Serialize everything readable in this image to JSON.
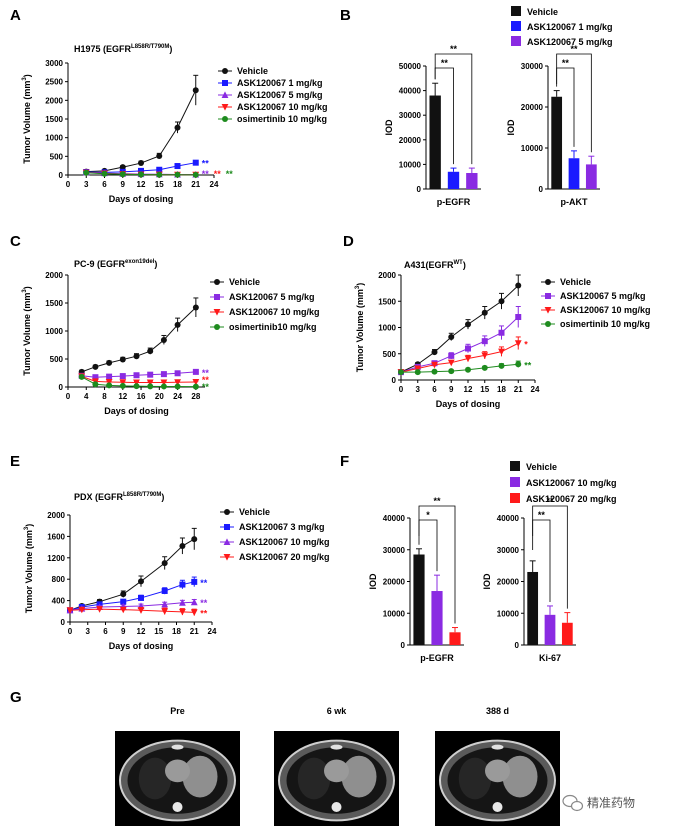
{
  "colors": {
    "vehicle": "#111111",
    "blue": "#1a1aff",
    "purple": "#8a2be2",
    "red": "#ff1a1a",
    "green": "#1e8b1e"
  },
  "footer": {
    "watermark_text": "精准药物",
    "watermark_icon": "wechat-icon"
  },
  "chart_data": [
    {
      "id": "A",
      "panel_label": "A",
      "type": "line",
      "title_main": "H1975 (EGFR",
      "title_sup": "L858R/T790M",
      "title_end": ")",
      "xlabel": "Days of dosing",
      "ylabel": "Tumor Volume (mm",
      "ylabel_sup": "3",
      "ylabel_end": ")",
      "xlim": [
        0,
        24
      ],
      "ylim": [
        0,
        3000
      ],
      "xticks": [
        0,
        3,
        6,
        9,
        12,
        15,
        18,
        21,
        24
      ],
      "yticks": [
        0,
        500,
        1000,
        1500,
        2000,
        2500,
        3000
      ],
      "x": [
        3,
        6,
        9,
        12,
        15,
        18,
        21
      ],
      "series": [
        {
          "name": "Vehicle",
          "color_key": "vehicle",
          "marker": "circle",
          "values": [
            90,
            110,
            210,
            320,
            510,
            1270,
            2270
          ],
          "err": [
            20,
            25,
            40,
            50,
            70,
            150,
            400
          ]
        },
        {
          "name": "ASK120067 1 mg/kg",
          "color_key": "blue",
          "marker": "square",
          "values": [
            80,
            70,
            85,
            110,
            140,
            240,
            330
          ],
          "err": [
            10,
            10,
            15,
            15,
            20,
            30,
            40
          ]
        },
        {
          "name": "ASK120067 5 mg/kg",
          "color_key": "purple",
          "marker": "triangle",
          "values": [
            70,
            50,
            35,
            25,
            20,
            15,
            12
          ],
          "err": [
            10,
            8,
            5,
            5,
            4,
            3,
            3
          ]
        },
        {
          "name": "ASK120067 10 mg/kg",
          "color_key": "red",
          "marker": "triangle-down",
          "values": [
            65,
            40,
            25,
            15,
            10,
            8,
            6
          ],
          "err": [
            8,
            6,
            4,
            3,
            2,
            2,
            2
          ]
        },
        {
          "name": "osimertinib 10 mg/kg",
          "color_key": "green",
          "marker": "circle",
          "values": [
            60,
            35,
            20,
            12,
            8,
            6,
            5
          ],
          "err": [
            8,
            5,
            4,
            3,
            2,
            2,
            2
          ]
        }
      ],
      "sig_marks": [
        {
          "text": "**",
          "color_key": "blue",
          "y": 330
        },
        {
          "text": "**",
          "color_key": "purple",
          "y": 0
        },
        {
          "text": "**",
          "color_key": "red",
          "y": 0
        },
        {
          "text": "**",
          "color_key": "green",
          "y": 0
        }
      ]
    },
    {
      "id": "C",
      "panel_label": "C",
      "type": "line",
      "title_main": "PC-9 (EGFR",
      "title_sup": "exon19del",
      "title_end": ")",
      "xlabel": "Days of dosing",
      "ylabel": "Tumor Volume (mm",
      "ylabel_sup": "3",
      "ylabel_end": ")",
      "xlim": [
        0,
        30
      ],
      "ylim": [
        0,
        2000
      ],
      "xticks": [
        0,
        4,
        8,
        12,
        16,
        20,
        24,
        28
      ],
      "yticks": [
        0,
        500,
        1000,
        1500,
        2000
      ],
      "x": [
        3,
        6,
        9,
        12,
        15,
        18,
        21,
        24,
        28
      ],
      "series": [
        {
          "name": "Vehicle",
          "color_key": "vehicle",
          "marker": "circle",
          "values": [
            270,
            360,
            430,
            490,
            550,
            640,
            840,
            1110,
            1420
          ],
          "err": [
            30,
            30,
            35,
            40,
            45,
            55,
            80,
            120,
            170
          ]
        },
        {
          "name": "ASK120067 5 mg/kg",
          "color_key": "purple",
          "marker": "square",
          "values": [
            200,
            175,
            185,
            195,
            210,
            220,
            230,
            245,
            270
          ],
          "err": [
            20,
            20,
            20,
            20,
            25,
            25,
            30,
            30,
            40
          ]
        },
        {
          "name": "ASK120067 10 mg/kg",
          "color_key": "red",
          "marker": "triangle-down",
          "values": [
            190,
            100,
            90,
            85,
            80,
            80,
            80,
            85,
            90
          ],
          "err": [
            20,
            15,
            15,
            15,
            15,
            15,
            15,
            15,
            15
          ]
        },
        {
          "name": "osimertinib10 mg/kg",
          "color_key": "green",
          "marker": "circle",
          "values": [
            180,
            50,
            30,
            20,
            15,
            12,
            10,
            8,
            6
          ],
          "err": [
            20,
            10,
            8,
            5,
            4,
            3,
            3,
            2,
            2
          ]
        }
      ],
      "sig_marks": [
        {
          "text": "**",
          "color_key": "purple",
          "y": 270
        },
        {
          "text": "**",
          "color_key": "red",
          "y": 140
        },
        {
          "text": "**",
          "color_key": "green",
          "y": 20
        }
      ]
    },
    {
      "id": "D",
      "panel_label": "D",
      "type": "line",
      "title_main": "A431(EGFR",
      "title_sup": "WT",
      "title_end": ")",
      "xlabel": "Days of dosing",
      "ylabel": "Tumor Volume (mm",
      "ylabel_sup": "3",
      "ylabel_end": ")",
      "xlim": [
        0,
        24
      ],
      "ylim": [
        0,
        2000
      ],
      "xticks": [
        0,
        3,
        6,
        9,
        12,
        15,
        18,
        21,
        24
      ],
      "yticks": [
        0,
        500,
        1000,
        1500,
        2000
      ],
      "x": [
        0,
        3,
        6,
        9,
        12,
        15,
        18,
        21
      ],
      "series": [
        {
          "name": "Vehicle",
          "color_key": "vehicle",
          "marker": "circle",
          "values": [
            150,
            300,
            530,
            820,
            1060,
            1280,
            1500,
            1800
          ],
          "err": [
            15,
            30,
            50,
            70,
            90,
            120,
            150,
            200
          ]
        },
        {
          "name": "ASK120067 5 mg/kg",
          "color_key": "purple",
          "marker": "square",
          "values": [
            150,
            250,
            320,
            460,
            600,
            740,
            900,
            1200
          ],
          "err": [
            15,
            30,
            40,
            60,
            80,
            100,
            130,
            200
          ]
        },
        {
          "name": "ASK120067 10 mg/kg",
          "color_key": "red",
          "marker": "triangle-down",
          "values": [
            150,
            220,
            290,
            330,
            410,
            470,
            540,
            700
          ],
          "err": [
            15,
            25,
            30,
            40,
            60,
            70,
            90,
            120
          ]
        },
        {
          "name": "osimertinib 10 mg/kg",
          "color_key": "green",
          "marker": "circle",
          "values": [
            150,
            150,
            160,
            170,
            195,
            230,
            270,
            300
          ],
          "err": [
            15,
            15,
            15,
            20,
            25,
            30,
            40,
            60
          ]
        }
      ],
      "sig_marks": [
        {
          "text": "*",
          "color_key": "red",
          "y": 700
        },
        {
          "text": "**",
          "color_key": "green",
          "y": 300
        }
      ]
    },
    {
      "id": "E",
      "panel_label": "E",
      "type": "line",
      "title_main": "PDX (EGFR",
      "title_sup": "L858R/T790M",
      "title_end": ")",
      "xlabel": "Days of dosing",
      "ylabel": "Tumor Volume (mm",
      "ylabel_sup": "3",
      "ylabel_end": ")",
      "xlim": [
        0,
        24
      ],
      "ylim": [
        0,
        2000
      ],
      "xticks": [
        0,
        3,
        6,
        9,
        12,
        15,
        18,
        21,
        24
      ],
      "yticks": [
        0,
        400,
        800,
        1200,
        1600,
        2000
      ],
      "x": [
        0,
        2,
        5,
        9,
        12,
        16,
        19,
        21
      ],
      "series": [
        {
          "name": "Vehicle",
          "color_key": "vehicle",
          "marker": "circle",
          "values": [
            220,
            300,
            380,
            520,
            760,
            1100,
            1420,
            1550
          ],
          "err": [
            20,
            30,
            40,
            60,
            100,
            120,
            150,
            200
          ]
        },
        {
          "name": "ASK120067 3 mg/kg",
          "color_key": "blue",
          "marker": "square",
          "values": [
            220,
            280,
            330,
            380,
            450,
            580,
            700,
            750
          ],
          "err": [
            20,
            25,
            30,
            40,
            50,
            60,
            80,
            90
          ]
        },
        {
          "name": "ASK120067 10 mg/kg",
          "color_key": "purple",
          "marker": "triangle",
          "values": [
            220,
            250,
            280,
            290,
            300,
            330,
            360,
            370
          ],
          "err": [
            20,
            25,
            30,
            30,
            35,
            40,
            45,
            50
          ]
        },
        {
          "name": "ASK120067 20 mg/kg",
          "color_key": "red",
          "marker": "triangle-down",
          "values": [
            220,
            230,
            240,
            230,
            220,
            200,
            190,
            180
          ],
          "err": [
            20,
            25,
            30,
            40,
            50,
            60,
            60,
            60
          ]
        }
      ],
      "sig_marks": [
        {
          "text": "**",
          "color_key": "blue",
          "y": 750
        },
        {
          "text": "**",
          "color_key": "purple",
          "y": 370
        },
        {
          "text": "**",
          "color_key": "red",
          "y": 180
        }
      ]
    },
    {
      "id": "B1",
      "panel_label": "B",
      "type": "bar",
      "xlabel": "p-EGFR",
      "ylabel": "IOD",
      "ylim": [
        0,
        50000
      ],
      "yticks": [
        0,
        10000,
        20000,
        30000,
        40000,
        50000
      ],
      "bars": [
        {
          "color_key": "vehicle",
          "value": 38000,
          "err": 5000
        },
        {
          "color_key": "blue",
          "value": 7000,
          "err": 1500
        },
        {
          "color_key": "purple",
          "value": 6500,
          "err": 2000
        }
      ],
      "sig": [
        {
          "from": 0,
          "to": 1,
          "text": "**",
          "level": 0
        },
        {
          "from": 0,
          "to": 2,
          "text": "**",
          "level": 1
        }
      ]
    },
    {
      "id": "B2",
      "panel_label": "",
      "type": "bar",
      "xlabel": "p-AKT",
      "ylabel": "IOD",
      "ylim": [
        0,
        30000
      ],
      "yticks": [
        0,
        10000,
        20000,
        30000
      ],
      "bars": [
        {
          "color_key": "vehicle",
          "value": 22500,
          "err": 1500
        },
        {
          "color_key": "blue",
          "value": 7500,
          "err": 1800
        },
        {
          "color_key": "purple",
          "value": 6000,
          "err": 2000
        }
      ],
      "sig": [
        {
          "from": 0,
          "to": 1,
          "text": "**",
          "level": 0
        },
        {
          "from": 0,
          "to": 2,
          "text": "**",
          "level": 1
        }
      ]
    },
    {
      "id": "F1",
      "panel_label": "F",
      "type": "bar",
      "xlabel": "p-EGFR",
      "ylabel": "IOD",
      "ylim": [
        0,
        40000
      ],
      "yticks": [
        0,
        10000,
        20000,
        30000,
        40000
      ],
      "bars": [
        {
          "color_key": "vehicle",
          "value": 28500,
          "err": 1800
        },
        {
          "color_key": "purple",
          "value": 17000,
          "err": 5000
        },
        {
          "color_key": "red",
          "value": 4000,
          "err": 1500
        }
      ],
      "sig": [
        {
          "from": 0,
          "to": 1,
          "text": "*",
          "level": 0
        },
        {
          "from": 0,
          "to": 2,
          "text": "**",
          "level": 1
        }
      ]
    },
    {
      "id": "F2",
      "panel_label": "",
      "type": "bar",
      "xlabel": "Ki-67",
      "ylabel": "IOD",
      "ylim": [
        0,
        40000
      ],
      "yticks": [
        0,
        10000,
        20000,
        30000,
        40000
      ],
      "bars": [
        {
          "color_key": "vehicle",
          "value": 23000,
          "err": 3500
        },
        {
          "color_key": "purple",
          "value": 9500,
          "err": 2800
        },
        {
          "color_key": "red",
          "value": 7000,
          "err": 3200
        }
      ],
      "sig": [
        {
          "from": 0,
          "to": 1,
          "text": "**",
          "level": 0
        },
        {
          "from": 0,
          "to": 2,
          "text": "**",
          "level": 1
        }
      ]
    }
  ],
  "legends": {
    "B": [
      {
        "name": "Vehicle",
        "color_key": "vehicle"
      },
      {
        "name": "ASK120067 1 mg/kg",
        "color_key": "blue"
      },
      {
        "name": "ASK120067 5 mg/kg",
        "color_key": "purple"
      }
    ],
    "F": [
      {
        "name": "Vehicle",
        "color_key": "vehicle"
      },
      {
        "name": "ASK120067 10 mg/kg",
        "color_key": "purple"
      },
      {
        "name": "ASK120067 20 mg/kg",
        "color_key": "red"
      }
    ]
  },
  "panel_g": {
    "label": "G",
    "scans": [
      {
        "caption": "Pre"
      },
      {
        "caption": "6 wk"
      },
      {
        "caption": "388 d"
      }
    ]
  }
}
